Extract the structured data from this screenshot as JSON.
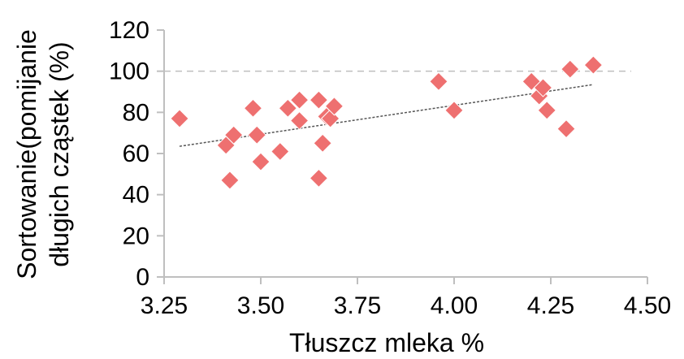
{
  "chart_data": {
    "type": "scatter",
    "title": "",
    "xlabel": "Tłuszcz mleka %",
    "ylabel_lines": [
      "Sortowanie(pomijanie",
      "długich cząstek (%)"
    ],
    "xlim": [
      3.25,
      4.5
    ],
    "ylim": [
      0,
      120
    ],
    "x_ticks": [
      {
        "value": 3.25,
        "label": "3.25"
      },
      {
        "value": 3.5,
        "label": "3.50"
      },
      {
        "value": 3.75,
        "label": "3.75"
      },
      {
        "value": 4.0,
        "label": "4.00"
      },
      {
        "value": 4.25,
        "label": "4.25"
      },
      {
        "value": 4.5,
        "label": "4.50"
      }
    ],
    "y_ticks": [
      {
        "value": 0,
        "label": "0"
      },
      {
        "value": 20,
        "label": "20"
      },
      {
        "value": 40,
        "label": "40"
      },
      {
        "value": 60,
        "label": "60"
      },
      {
        "value": 80,
        "label": "80"
      },
      {
        "value": 100,
        "label": "100"
      },
      {
        "value": 120,
        "label": "120"
      }
    ],
    "reference_line": {
      "y": 100,
      "style": "dashed",
      "color": "#bfbfbf"
    },
    "trendline": {
      "x": [
        3.29,
        4.36
      ],
      "y": [
        63.5,
        93.5
      ],
      "style": "dotted",
      "color": "#555555"
    },
    "marker": {
      "shape": "diamond",
      "color": "#ee7070"
    },
    "series": [
      {
        "points": [
          {
            "x": 3.29,
            "y": 77
          },
          {
            "x": 3.41,
            "y": 64
          },
          {
            "x": 3.42,
            "y": 47
          },
          {
            "x": 3.43,
            "y": 69
          },
          {
            "x": 3.48,
            "y": 82
          },
          {
            "x": 3.49,
            "y": 69
          },
          {
            "x": 3.5,
            "y": 56
          },
          {
            "x": 3.55,
            "y": 61
          },
          {
            "x": 3.57,
            "y": 82
          },
          {
            "x": 3.6,
            "y": 86
          },
          {
            "x": 3.6,
            "y": 76
          },
          {
            "x": 3.65,
            "y": 48
          },
          {
            "x": 3.65,
            "y": 86
          },
          {
            "x": 3.66,
            "y": 65
          },
          {
            "x": 3.67,
            "y": 78
          },
          {
            "x": 3.68,
            "y": 77
          },
          {
            "x": 3.69,
            "y": 83
          },
          {
            "x": 3.96,
            "y": 95
          },
          {
            "x": 4.0,
            "y": 81
          },
          {
            "x": 4.2,
            "y": 95
          },
          {
            "x": 4.22,
            "y": 88
          },
          {
            "x": 4.23,
            "y": 92
          },
          {
            "x": 4.24,
            "y": 81
          },
          {
            "x": 4.29,
            "y": 72
          },
          {
            "x": 4.3,
            "y": 101
          },
          {
            "x": 4.36,
            "y": 103
          }
        ]
      }
    ]
  }
}
